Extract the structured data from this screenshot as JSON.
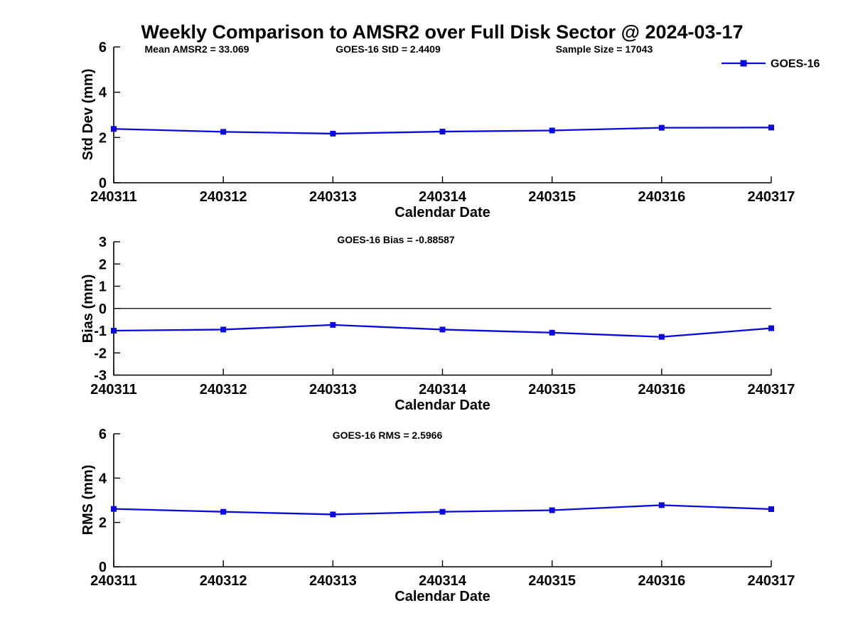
{
  "figure": {
    "title": "Weekly Comparison to AMSR2 over Full Disk Sector @ 2024-03-17"
  },
  "legend": {
    "label": "GOES-16",
    "position": "top-right",
    "marker": "filled-square"
  },
  "colors": {
    "series": "#0a0ade",
    "axis": "#000000",
    "zero_line": "#000000",
    "text": "#000000",
    "background": "#ffffff"
  },
  "chart_data": [
    {
      "type": "line",
      "id": "std-dev",
      "annotations": [
        "Mean AMSR2 = 33.069",
        "GOES-16 StD = 2.4409",
        "Sample Size = 17043"
      ],
      "xlabel": "Calendar Date",
      "ylabel": "Std Dev (mm)",
      "categories": [
        "240311",
        "240312",
        "240313",
        "240314",
        "240315",
        "240316",
        "240317"
      ],
      "series": [
        {
          "name": "GOES-16",
          "values": [
            2.38,
            2.25,
            2.17,
            2.26,
            2.31,
            2.43,
            2.44
          ]
        }
      ],
      "ylim": [
        0,
        6
      ],
      "yticks": [
        0,
        2,
        4,
        6
      ],
      "zero_line": false,
      "grid": false,
      "legend_visible": true
    },
    {
      "type": "line",
      "id": "bias",
      "annotations": [
        "GOES-16 Bias  = -0.88587"
      ],
      "xlabel": "Calendar Date",
      "ylabel": "Bias (mm)",
      "categories": [
        "240311",
        "240312",
        "240313",
        "240314",
        "240315",
        "240316",
        "240317"
      ],
      "series": [
        {
          "name": "GOES-16",
          "values": [
            -1.0,
            -0.95,
            -0.74,
            -0.95,
            -1.09,
            -1.28,
            -0.89
          ]
        }
      ],
      "ylim": [
        -3,
        3
      ],
      "yticks": [
        3,
        2,
        1,
        0,
        -1,
        -2,
        -3
      ],
      "zero_line": true,
      "grid": false,
      "legend_visible": false
    },
    {
      "type": "line",
      "id": "rms",
      "annotations": [
        "GOES-16 RMS = 2.5966"
      ],
      "xlabel": "Calendar Date",
      "ylabel": "RMS (mm)",
      "categories": [
        "240311",
        "240312",
        "240313",
        "240314",
        "240315",
        "240316",
        "240317"
      ],
      "series": [
        {
          "name": "GOES-16",
          "values": [
            2.61,
            2.48,
            2.36,
            2.48,
            2.55,
            2.78,
            2.6
          ]
        }
      ],
      "ylim": [
        0,
        6
      ],
      "yticks": [
        0,
        2,
        4,
        6
      ],
      "zero_line": false,
      "grid": false,
      "legend_visible": false
    }
  ]
}
